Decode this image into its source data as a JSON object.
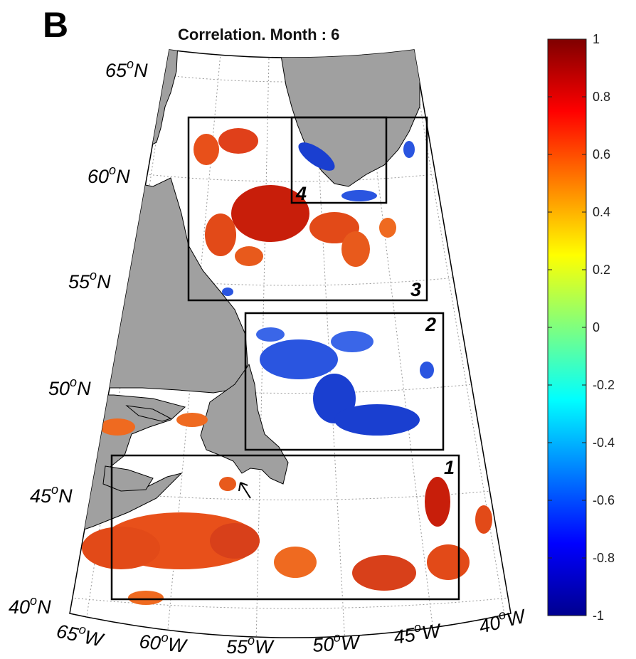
{
  "panel_letter": "B",
  "title": "Correlation. Month : 6",
  "colorbar": {
    "ticks": [
      "1",
      "0.8",
      "0.6",
      "0.4",
      "0.2",
      "0",
      "-0.2",
      "-0.4",
      "-0.6",
      "-0.8",
      "-1"
    ],
    "colormap": "jet",
    "range": [
      -1,
      1
    ]
  },
  "graticule": {
    "lat_labels": [
      {
        "deg": "65",
        "hemi": "N"
      },
      {
        "deg": "60",
        "hemi": "N"
      },
      {
        "deg": "55",
        "hemi": "N"
      },
      {
        "deg": "50",
        "hemi": "N"
      },
      {
        "deg": "45",
        "hemi": "N"
      },
      {
        "deg": "40",
        "hemi": "N"
      }
    ],
    "lon_labels": [
      {
        "deg": "65",
        "hemi": "W"
      },
      {
        "deg": "60",
        "hemi": "W"
      },
      {
        "deg": "55",
        "hemi": "W"
      },
      {
        "deg": "50",
        "hemi": "W"
      },
      {
        "deg": "45",
        "hemi": "W"
      },
      {
        "deg": "40",
        "hemi": "W"
      }
    ],
    "degree_symbol": "o"
  },
  "boxes": [
    "1",
    "2",
    "3",
    "4"
  ],
  "colors": {
    "land": "#a0a0a0",
    "positive_strong": "#c81e0a",
    "positive": "#e8501a",
    "negative": "#1a3fd0",
    "frame": "#000000"
  }
}
